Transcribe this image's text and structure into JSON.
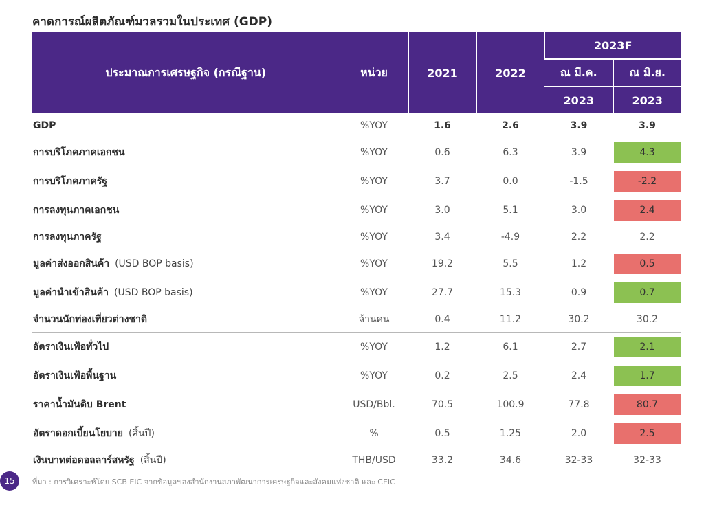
{
  "title": "คาดการณ์ผลิตภัณฑ์มวลรวมในประเทศ (GDP)",
  "header": {
    "indicator": "ประมาณการเศรษฐกิจ (กรณีฐาน)",
    "unit": "หน่วย",
    "y2021": "2021",
    "y2022": "2022",
    "forecast": "2023F",
    "mar": "ณ มี.ค.",
    "jun": "ณ มิ.ย.",
    "mar_year": "2023",
    "jun_year": "2023"
  },
  "colors": {
    "header_bg": "#4b2887",
    "up": "#8cc152",
    "down": "#e8706d"
  },
  "rows": [
    {
      "label": "GDP",
      "note": "",
      "unit": "%YOY",
      "v2021": "1.6",
      "v2022": "2.6",
      "mar": "3.9",
      "jun": "3.9",
      "change": "none"
    },
    {
      "label": "การบริโภคภาคเอกชน",
      "note": "",
      "unit": "%YOY",
      "v2021": "0.6",
      "v2022": "6.3",
      "mar": "3.9",
      "jun": "4.3",
      "change": "up"
    },
    {
      "label": "การบริโภคภาครัฐ",
      "note": "",
      "unit": "%YOY",
      "v2021": "3.7",
      "v2022": "0.0",
      "mar": "-1.5",
      "jun": "-2.2",
      "change": "down"
    },
    {
      "label": "การลงทุนภาคเอกชน",
      "note": "",
      "unit": "%YOY",
      "v2021": "3.0",
      "v2022": "5.1",
      "mar": "3.0",
      "jun": "2.4",
      "change": "down"
    },
    {
      "label": "การลงทุนภาครัฐ",
      "note": "",
      "unit": "%YOY",
      "v2021": "3.4",
      "v2022": "-4.9",
      "mar": "2.2",
      "jun": "2.2",
      "change": "none"
    },
    {
      "label": "มูลค่าส่งออกสินค้า",
      "note": "(USD BOP basis)",
      "unit": "%YOY",
      "v2021": "19.2",
      "v2022": "5.5",
      "mar": "1.2",
      "jun": "0.5",
      "change": "down"
    },
    {
      "label": "มูลค่านำเข้าสินค้า",
      "note": "(USD BOP basis)",
      "unit": "%YOY",
      "v2021": "27.7",
      "v2022": "15.3",
      "mar": "0.9",
      "jun": "0.7",
      "change": "up"
    },
    {
      "label": "จำนวนนักท่องเที่ยวต่างชาติ",
      "note": "",
      "unit": "ล้านคน",
      "v2021": "0.4",
      "v2022": "11.2",
      "mar": "30.2",
      "jun": "30.2",
      "change": "none"
    },
    {
      "label": "อัตราเงินเฟ้อทั่วไป",
      "note": "",
      "unit": "%YOY",
      "v2021": "1.2",
      "v2022": "6.1",
      "mar": "2.7",
      "jun": "2.1",
      "change": "up"
    },
    {
      "label": "อัตราเงินเฟ้อพื้นฐาน",
      "note": "",
      "unit": "%YOY",
      "v2021": "0.2",
      "v2022": "2.5",
      "mar": "2.4",
      "jun": "1.7",
      "change": "up"
    },
    {
      "label": "ราคาน้ำมันดิบ Brent",
      "note": "",
      "unit": "USD/Bbl.",
      "v2021": "70.5",
      "v2022": "100.9",
      "mar": "77.8",
      "jun": "80.7",
      "change": "down"
    },
    {
      "label": "อัตราดอกเบี้ยนโยบาย",
      "note": "(สิ้นปี)",
      "unit": "%",
      "v2021": "0.5",
      "v2022": "1.25",
      "mar": "2.0",
      "jun": "2.5",
      "change": "down"
    },
    {
      "label": "เงินบาทต่อดอลลาร์สหรัฐ",
      "note": "(สิ้นปี)",
      "unit": "THB/USD",
      "v2021": "33.2",
      "v2022": "34.6",
      "mar": "32-33",
      "jun": "32-33",
      "change": "none"
    }
  ],
  "footer": {
    "page_number": "15",
    "source": "ที่มา : การวิเคราะห์โดย SCB EIC จากข้อมูลของสำนักงานสภาพัฒนาการเศรษฐกิจและสังคมแห่งชาติ และ CEIC"
  }
}
